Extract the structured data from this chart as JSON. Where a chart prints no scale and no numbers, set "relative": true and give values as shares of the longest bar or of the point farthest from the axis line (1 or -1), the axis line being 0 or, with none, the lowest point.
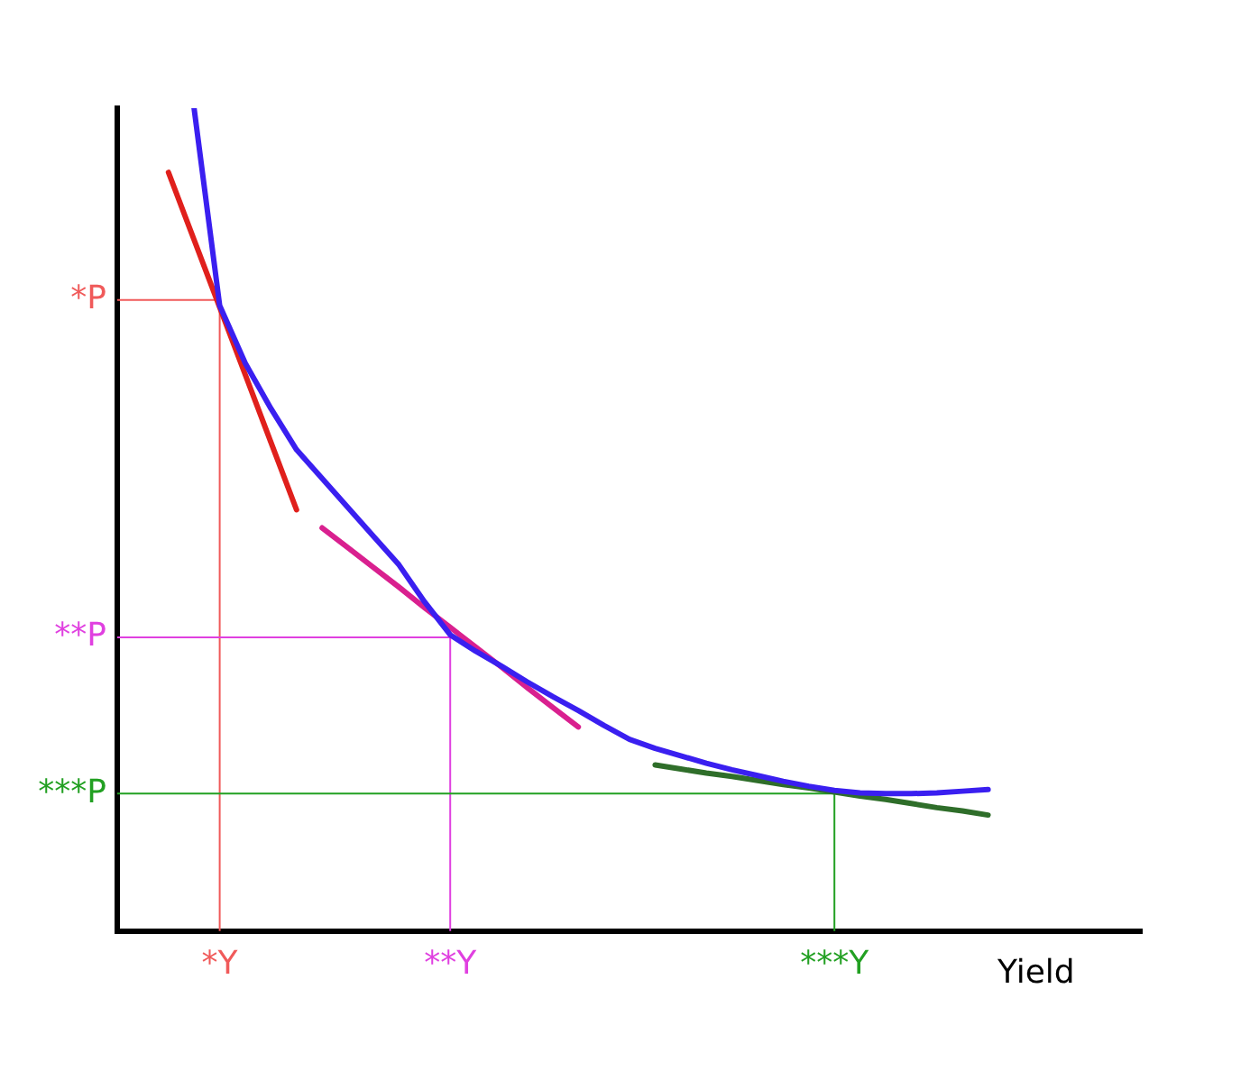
{
  "chart_data": {
    "type": "line",
    "relative": true,
    "xlabel": "Yield",
    "legend": false,
    "grid": false,
    "marker": "none",
    "line_style": "solid",
    "categories": [
      null,
      null,
      null,
      null,
      "*Y",
      null,
      null,
      null,
      null,
      null,
      null,
      null,
      null,
      "**Y",
      null,
      null,
      null,
      null,
      null,
      null,
      null,
      null,
      null,
      null,
      null,
      null,
      null,
      null,
      "***Y",
      null,
      null,
      null,
      null,
      null,
      null,
      null,
      null,
      null,
      null,
      null,
      null
    ],
    "ref_lines": [
      {
        "axis": "y",
        "value": 0.767,
        "label": "*P",
        "color": "#f05a5a"
      },
      {
        "axis": "x",
        "value": "*Y",
        "color": "#f05a5a"
      },
      {
        "axis": "y",
        "value": 0.357,
        "label": "**P",
        "color": "#e040e0"
      },
      {
        "axis": "x",
        "value": "**Y",
        "color": "#e040e0"
      },
      {
        "axis": "y",
        "value": 0.167,
        "label": "***P",
        "color": "#22a022"
      },
      {
        "axis": "x",
        "value": "***Y",
        "color": "#22a022"
      }
    ],
    "series": [
      {
        "color": "#3a1ff0",
        "values": [
          null,
          null,
          null,
          1.0,
          0.76,
          0.69,
          0.635,
          0.585,
          0.55,
          0.515,
          0.48,
          0.445,
          0.4,
          0.36,
          0.34,
          0.322,
          0.303,
          0.285,
          0.268,
          0.25,
          0.233,
          0.222,
          0.213,
          0.204,
          0.196,
          0.189,
          0.182,
          0.176,
          0.171,
          0.168,
          0.167,
          0.167,
          0.168,
          0.17,
          0.172,
          null,
          null,
          null,
          null,
          null,
          null
        ]
      },
      {
        "color": "#e0201c",
        "values": [
          null,
          null,
          0.922,
          0.84,
          0.758,
          0.676,
          0.594,
          0.512,
          null,
          null,
          null,
          null,
          null,
          null,
          null,
          null,
          null,
          null,
          null,
          null,
          null,
          null,
          null,
          null,
          null,
          null,
          null,
          null,
          null,
          null,
          null,
          null,
          null,
          null,
          null,
          null,
          null,
          null,
          null,
          null,
          null
        ]
      },
      {
        "color": "#d9208f",
        "values": [
          null,
          null,
          null,
          null,
          null,
          null,
          null,
          null,
          0.49,
          0.466,
          0.442,
          0.418,
          0.393,
          0.369,
          0.345,
          0.321,
          0.296,
          0.272,
          0.248,
          null,
          null,
          null,
          null,
          null,
          null,
          null,
          null,
          null,
          null,
          null,
          null,
          null,
          null,
          null,
          null,
          null,
          null,
          null,
          null,
          null,
          null
        ]
      },
      {
        "color": "#2f6e2a",
        "values": [
          null,
          null,
          null,
          null,
          null,
          null,
          null,
          null,
          null,
          null,
          null,
          null,
          null,
          null,
          null,
          null,
          null,
          null,
          null,
          null,
          null,
          0.202,
          0.197,
          0.192,
          0.188,
          0.183,
          0.178,
          0.174,
          0.169,
          0.164,
          0.16,
          0.155,
          0.15,
          0.146,
          0.141,
          null,
          null,
          null,
          null,
          null,
          null
        ]
      }
    ]
  }
}
